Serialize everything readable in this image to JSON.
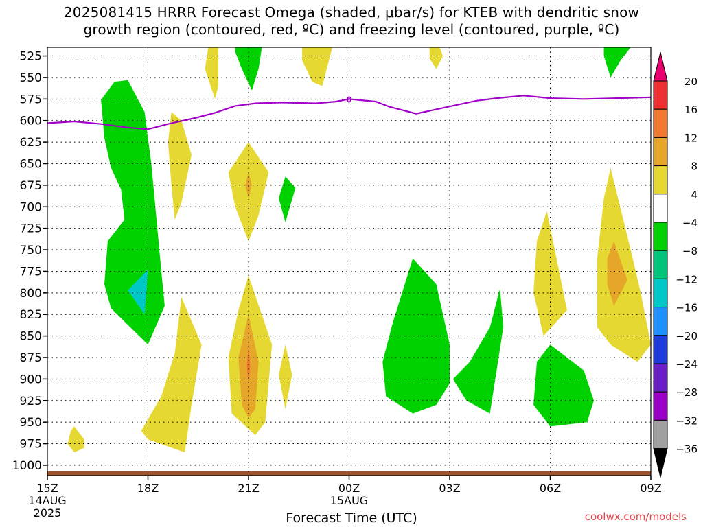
{
  "title": {
    "line1": "2025081415 HRRR Forecast Omega (shaded, μbar/s) for KTEB with dendritic snow",
    "line2": "growth region (contoured, red, ºC) and freezing level (contoured, purple, ºC)"
  },
  "credit": "coolwx.com/models",
  "chart_data": {
    "type": "heatmap",
    "xlabel": "Forecast Time (UTC)",
    "x_ticks": [
      {
        "hour": 0,
        "label": "15Z",
        "sub": [
          "14AUG",
          "2025"
        ]
      },
      {
        "hour": 3,
        "label": "18Z"
      },
      {
        "hour": 6,
        "label": "21Z"
      },
      {
        "hour": 9,
        "label": "00Z",
        "sub": [
          "15AUG"
        ]
      },
      {
        "hour": 12,
        "label": "03Z"
      },
      {
        "hour": 15,
        "label": "06Z"
      },
      {
        "hour": 18,
        "label": "09Z"
      }
    ],
    "xlim_hours": [
      0,
      18
    ],
    "y_ticks": [
      525,
      550,
      575,
      600,
      625,
      650,
      675,
      700,
      725,
      750,
      775,
      800,
      825,
      850,
      875,
      900,
      925,
      950,
      975,
      1000
    ],
    "ylim_hPa": [
      1012,
      515
    ],
    "grid": true,
    "colorbar": {
      "labels": [
        "20",
        "16",
        "12",
        "8",
        "4",
        "−4",
        "−8",
        "−12",
        "−16",
        "−20",
        "−24",
        "−28",
        "−32",
        "−36"
      ],
      "colors": [
        "#e8006e",
        "#f03030",
        "#f07830",
        "#e6a62a",
        "#e6d832",
        "#ffffff",
        "#00d200",
        "#00c47a",
        "#00c8c8",
        "#1e90ff",
        "#1e3cdc",
        "#6a1ec8",
        "#9a00c8",
        "#a0a0a0",
        "#000000"
      ]
    },
    "freezing_level": {
      "label": "0",
      "color": "#a000c8",
      "points": [
        [
          0,
          603
        ],
        [
          0.8,
          601
        ],
        [
          1.6,
          604
        ],
        [
          2.4,
          608
        ],
        [
          3.0,
          610
        ],
        [
          3.6,
          604
        ],
        [
          4.4,
          597
        ],
        [
          5.0,
          591
        ],
        [
          5.6,
          583
        ],
        [
          6.2,
          580
        ],
        [
          7.0,
          579
        ],
        [
          8.0,
          580
        ],
        [
          8.6,
          578
        ],
        [
          9.0,
          575
        ],
        [
          9.8,
          578
        ],
        [
          10.2,
          584
        ],
        [
          11.0,
          592
        ],
        [
          11.6,
          587
        ],
        [
          12.2,
          582
        ],
        [
          12.8,
          577
        ],
        [
          13.4,
          574
        ],
        [
          14.2,
          571
        ],
        [
          15.0,
          574
        ],
        [
          16.0,
          575
        ],
        [
          17.0,
          574
        ],
        [
          18.0,
          573
        ]
      ]
    },
    "omega_regions": [
      {
        "value": -6,
        "color": "#00d200",
        "points": [
          [
            1.6,
            576
          ],
          [
            2.0,
            555
          ],
          [
            2.4,
            553
          ],
          [
            2.9,
            590
          ],
          [
            3.1,
            650
          ],
          [
            3.4,
            775
          ],
          [
            3.5,
            815
          ],
          [
            3.0,
            860
          ],
          [
            1.9,
            818
          ],
          [
            1.7,
            790
          ],
          [
            1.8,
            740
          ],
          [
            2.3,
            715
          ],
          [
            2.2,
            680
          ],
          [
            1.9,
            655
          ],
          [
            1.7,
            620
          ]
        ]
      },
      {
        "value": -14,
        "color": "#00c8c8",
        "points": [
          [
            3.0,
            773
          ],
          [
            2.4,
            797
          ],
          [
            2.9,
            825
          ]
        ]
      },
      {
        "value": 6,
        "color": "#e6d832",
        "points": [
          [
            0.8,
            955
          ],
          [
            1.1,
            970
          ],
          [
            1.1,
            980
          ],
          [
            0.8,
            985
          ],
          [
            0.6,
            975
          ],
          [
            0.7,
            960
          ]
        ]
      },
      {
        "value": 6,
        "color": "#e6d832",
        "points": [
          [
            3.7,
            590
          ],
          [
            4.0,
            600
          ],
          [
            4.3,
            640
          ],
          [
            4.0,
            695
          ],
          [
            3.8,
            715
          ],
          [
            3.7,
            675
          ],
          [
            3.6,
            625
          ]
        ]
      },
      {
        "value": 6,
        "color": "#e6d832",
        "points": [
          [
            4.0,
            805
          ],
          [
            4.6,
            860
          ],
          [
            4.3,
            930
          ],
          [
            4.1,
            985
          ],
          [
            3.0,
            970
          ],
          [
            2.8,
            960
          ],
          [
            3.4,
            920
          ],
          [
            3.8,
            870
          ]
        ]
      },
      {
        "value": 6,
        "color": "#e6d832",
        "points": [
          [
            4.8,
            500
          ],
          [
            5.1,
            500
          ],
          [
            5.1,
            560
          ],
          [
            5.0,
            575
          ],
          [
            4.7,
            540
          ]
        ]
      },
      {
        "value": -6,
        "color": "#00d200",
        "points": [
          [
            5.6,
            500
          ],
          [
            6.4,
            500
          ],
          [
            6.3,
            540
          ],
          [
            6.1,
            565
          ],
          [
            5.8,
            540
          ],
          [
            5.6,
            520
          ]
        ]
      },
      {
        "value": 6,
        "color": "#e6d832",
        "points": [
          [
            6.0,
            625
          ],
          [
            6.6,
            660
          ],
          [
            6.3,
            710
          ],
          [
            6.0,
            740
          ],
          [
            5.6,
            700
          ],
          [
            5.4,
            660
          ]
        ]
      },
      {
        "value": 10,
        "color": "#e6a62a",
        "points": [
          [
            6.0,
            660
          ],
          [
            6.1,
            675
          ],
          [
            6.0,
            690
          ],
          [
            5.9,
            675
          ]
        ]
      },
      {
        "value": 6,
        "color": "#e6d832",
        "points": [
          [
            6.0,
            780
          ],
          [
            6.7,
            860
          ],
          [
            6.5,
            950
          ],
          [
            6.2,
            965
          ],
          [
            5.5,
            940
          ],
          [
            5.4,
            875
          ],
          [
            5.7,
            820
          ]
        ]
      },
      {
        "value": 10,
        "color": "#e6a62a",
        "points": [
          [
            6.0,
            825
          ],
          [
            6.3,
            880
          ],
          [
            6.2,
            935
          ],
          [
            6.0,
            945
          ],
          [
            5.8,
            930
          ],
          [
            5.7,
            875
          ]
        ]
      },
      {
        "value": 14,
        "color": "#f07830",
        "points": [
          [
            6.0,
            860
          ],
          [
            6.05,
            885
          ],
          [
            6.0,
            905
          ],
          [
            5.95,
            885
          ]
        ]
      },
      {
        "value": 6,
        "color": "#e6d832",
        "points": [
          [
            7.6,
            500
          ],
          [
            8.5,
            500
          ],
          [
            8.4,
            530
          ],
          [
            8.2,
            560
          ],
          [
            7.9,
            555
          ],
          [
            7.6,
            530
          ]
        ]
      },
      {
        "value": -6,
        "color": "#00d200",
        "points": [
          [
            7.1,
            665
          ],
          [
            7.4,
            678
          ],
          [
            7.1,
            718
          ],
          [
            6.9,
            690
          ]
        ]
      },
      {
        "value": 6,
        "color": "#e6d832",
        "points": [
          [
            7.1,
            860
          ],
          [
            7.3,
            895
          ],
          [
            7.1,
            935
          ],
          [
            6.9,
            895
          ]
        ]
      },
      {
        "value": 6,
        "color": "#e6d832",
        "points": [
          [
            11.4,
            500
          ],
          [
            11.7,
            500
          ],
          [
            11.8,
            525
          ],
          [
            11.6,
            540
          ],
          [
            11.4,
            528
          ]
        ]
      },
      {
        "value": -6,
        "color": "#00d200",
        "points": [
          [
            10.9,
            760
          ],
          [
            11.6,
            790
          ],
          [
            12.0,
            860
          ],
          [
            12.0,
            905
          ],
          [
            11.6,
            930
          ],
          [
            10.9,
            940
          ],
          [
            10.1,
            920
          ],
          [
            10.0,
            880
          ],
          [
            10.3,
            835
          ]
        ]
      },
      {
        "value": -6,
        "color": "#00d200",
        "points": [
          [
            13.5,
            795
          ],
          [
            13.2,
            840
          ],
          [
            12.6,
            880
          ],
          [
            12.1,
            900
          ],
          [
            12.5,
            925
          ],
          [
            13.2,
            940
          ],
          [
            13.3,
            915
          ],
          [
            13.6,
            840
          ]
        ]
      },
      {
        "value": 6,
        "color": "#e6d832",
        "points": [
          [
            14.9,
            705
          ],
          [
            15.5,
            820
          ],
          [
            14.8,
            850
          ],
          [
            14.5,
            800
          ],
          [
            14.6,
            740
          ]
        ]
      },
      {
        "value": 6,
        "color": "#e6d832",
        "points": [
          [
            16.8,
            655
          ],
          [
            17.4,
            750
          ],
          [
            17.7,
            800
          ],
          [
            18.0,
            860
          ],
          [
            17.6,
            880
          ],
          [
            16.8,
            860
          ],
          [
            16.4,
            840
          ],
          [
            16.4,
            760
          ],
          [
            16.6,
            690
          ]
        ]
      },
      {
        "value": 10,
        "color": "#e6a62a",
        "points": [
          [
            16.9,
            740
          ],
          [
            17.3,
            785
          ],
          [
            16.9,
            815
          ],
          [
            16.7,
            790
          ],
          [
            16.7,
            760
          ]
        ]
      },
      {
        "value": -6,
        "color": "#00d200",
        "points": [
          [
            16.6,
            500
          ],
          [
            17.4,
            500
          ],
          [
            17.1,
            530
          ],
          [
            16.8,
            550
          ],
          [
            16.6,
            525
          ]
        ]
      },
      {
        "value": -6,
        "color": "#00d200",
        "points": [
          [
            15.0,
            860
          ],
          [
            16.0,
            890
          ],
          [
            16.3,
            925
          ],
          [
            16.1,
            950
          ],
          [
            15.0,
            955
          ],
          [
            14.5,
            930
          ],
          [
            14.6,
            880
          ]
        ]
      }
    ]
  }
}
